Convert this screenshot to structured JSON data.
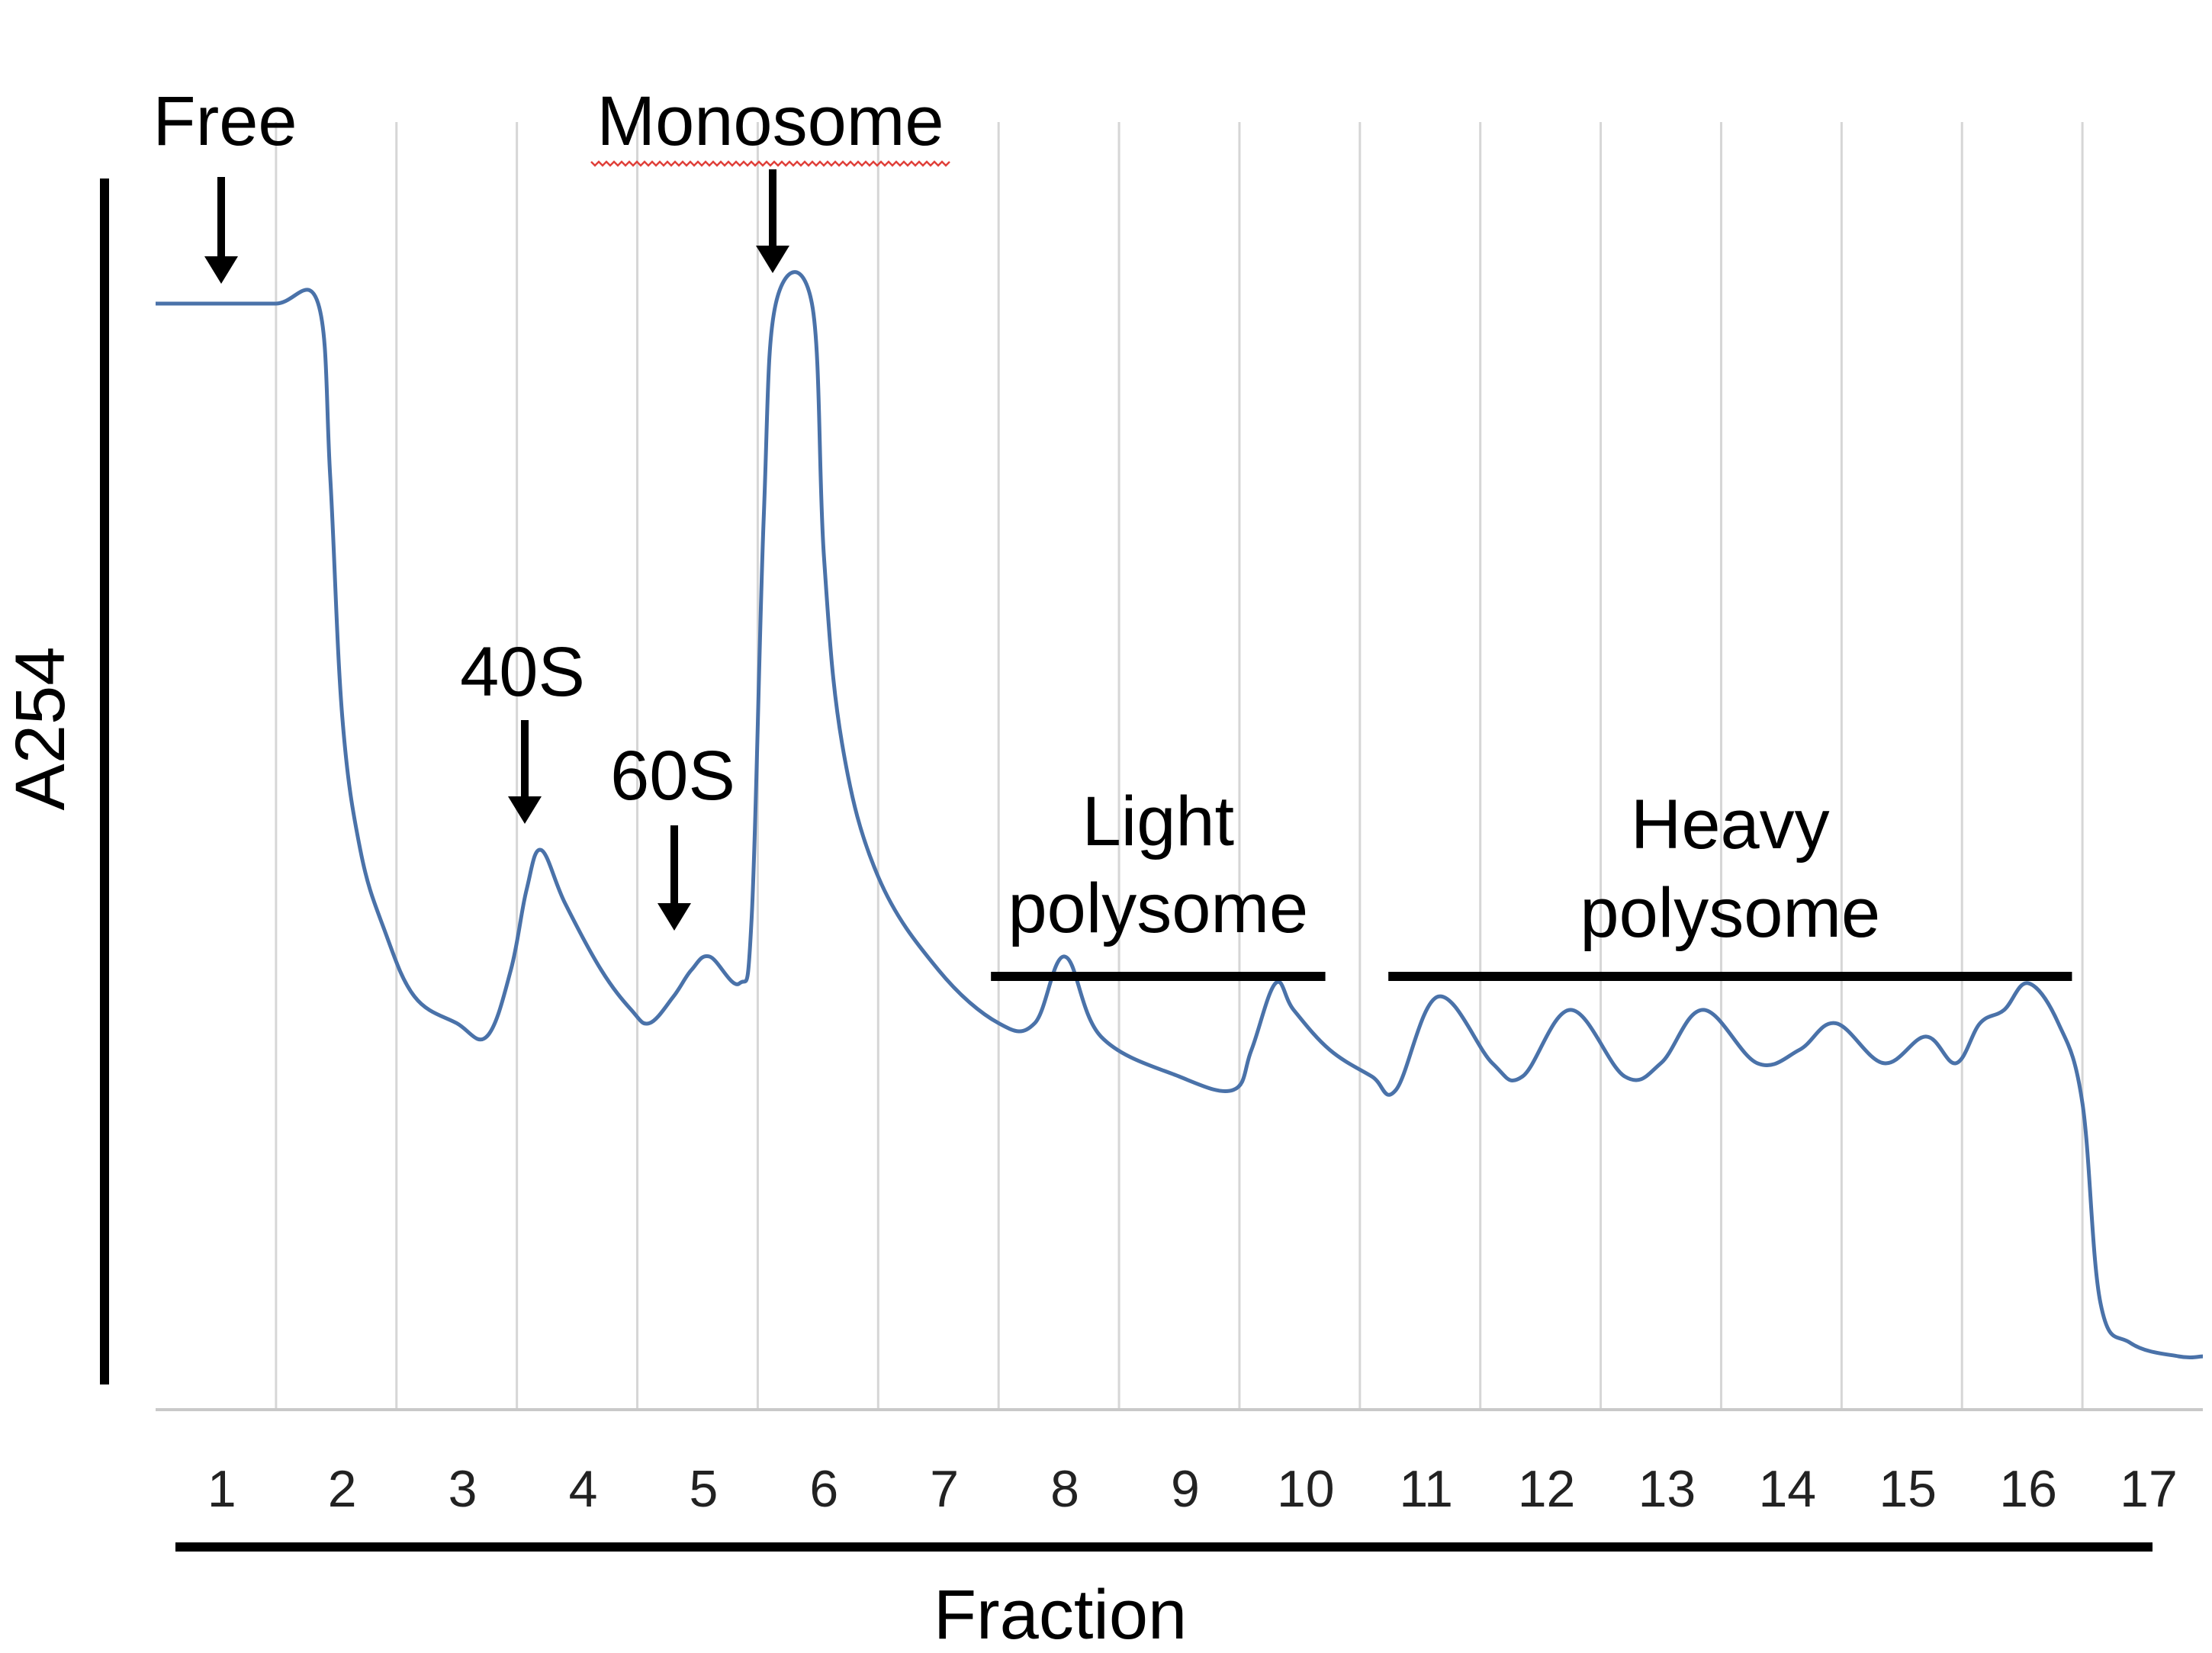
{
  "chart_data": {
    "type": "line",
    "xlabel": "Fraction",
    "ylabel": "A254",
    "categories": [
      "1",
      "2",
      "3",
      "4",
      "5",
      "6",
      "7",
      "8",
      "9",
      "10",
      "11",
      "12",
      "13",
      "14",
      "15",
      "16",
      "17"
    ],
    "xlim": [
      0,
      17
    ],
    "ylim": [
      0,
      1
    ],
    "grid": "vertical",
    "colors": {
      "line": "#4a72a9",
      "grid": "#d6d6d6",
      "axis": "#c9c9c9",
      "annotation": "#000000"
    },
    "series": [
      {
        "values": [
          [
            0.0,
            0.83
          ],
          [
            0.5,
            0.83
          ],
          [
            1.0,
            0.83
          ],
          [
            1.35,
            0.83
          ],
          [
            1.45,
            0.7
          ],
          [
            1.55,
            0.52
          ],
          [
            1.7,
            0.42
          ],
          [
            1.9,
            0.36
          ],
          [
            2.15,
            0.31
          ],
          [
            2.5,
            0.29
          ],
          [
            2.75,
            0.28
          ],
          [
            2.95,
            0.33
          ],
          [
            3.08,
            0.39
          ],
          [
            3.2,
            0.42
          ],
          [
            3.4,
            0.38
          ],
          [
            3.7,
            0.33
          ],
          [
            3.95,
            0.3
          ],
          [
            4.1,
            0.29
          ],
          [
            4.3,
            0.31
          ],
          [
            4.45,
            0.33
          ],
          [
            4.6,
            0.34
          ],
          [
            4.85,
            0.32
          ],
          [
            4.95,
            0.37
          ],
          [
            5.05,
            0.67
          ],
          [
            5.15,
            0.83
          ],
          [
            5.45,
            0.83
          ],
          [
            5.55,
            0.64
          ],
          [
            5.7,
            0.5
          ],
          [
            6.0,
            0.4
          ],
          [
            6.5,
            0.33
          ],
          [
            7.0,
            0.29
          ],
          [
            7.3,
            0.29
          ],
          [
            7.55,
            0.34
          ],
          [
            7.85,
            0.28
          ],
          [
            8.5,
            0.25
          ],
          [
            8.95,
            0.24
          ],
          [
            9.1,
            0.27
          ],
          [
            9.3,
            0.32
          ],
          [
            9.45,
            0.3
          ],
          [
            9.75,
            0.27
          ],
          [
            10.1,
            0.25
          ],
          [
            10.3,
            0.24
          ],
          [
            10.65,
            0.31
          ],
          [
            11.1,
            0.26
          ],
          [
            11.35,
            0.25
          ],
          [
            11.75,
            0.3
          ],
          [
            12.2,
            0.25
          ],
          [
            12.5,
            0.26
          ],
          [
            12.85,
            0.3
          ],
          [
            13.3,
            0.26
          ],
          [
            13.65,
            0.27
          ],
          [
            13.95,
            0.29
          ],
          [
            14.35,
            0.26
          ],
          [
            14.7,
            0.28
          ],
          [
            14.95,
            0.26
          ],
          [
            15.15,
            0.29
          ],
          [
            15.35,
            0.3
          ],
          [
            15.55,
            0.32
          ],
          [
            15.8,
            0.29
          ],
          [
            16.0,
            0.23
          ],
          [
            16.15,
            0.08
          ],
          [
            16.4,
            0.05
          ],
          [
            16.8,
            0.04
          ],
          [
            17.0,
            0.04
          ]
        ]
      }
    ],
    "annotations": [
      {
        "label": "Free",
        "x": 0.55,
        "arrow": true,
        "underline": false
      },
      {
        "label": "Monosome",
        "x": 5.1,
        "arrow": true,
        "underline": true
      },
      {
        "label": "40S",
        "x": 3.1,
        "arrow": true,
        "underline": false
      },
      {
        "label": "60S",
        "x": 4.35,
        "arrow": true,
        "underline": false
      },
      {
        "label_lines": [
          "Light",
          "polysome"
        ],
        "range": [
          7.0,
          9.65
        ]
      },
      {
        "label_lines": [
          "Heavy",
          "polysome"
        ],
        "range": [
          10.3,
          15.85
        ]
      }
    ]
  }
}
